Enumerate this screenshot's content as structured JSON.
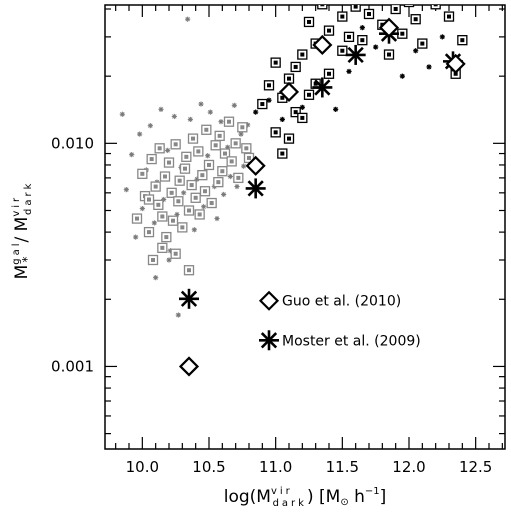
{
  "chart_data": {
    "type": "scatter",
    "xlabel": {
      "base": "log(M",
      "sup": "vir",
      "sub": "dark",
      "unit": ") [M",
      "tail": " h",
      "exp": "−1",
      "close": "]"
    },
    "ylabel": {
      "base": "M",
      "sup1": "gal",
      "sub1": "*",
      "slash": "/ M",
      "sup2": "vir",
      "sub2": "dark"
    },
    "xlim": [
      9.72,
      12.72
    ],
    "ylim_log10": [
      -3.37,
      -1.38
    ],
    "x_ticks": [
      {
        "value": 10.0,
        "label": "10.0"
      },
      {
        "value": 10.5,
        "label": "10.5"
      },
      {
        "value": 11.0,
        "label": "11.0"
      },
      {
        "value": 11.5,
        "label": "11.5"
      },
      {
        "value": 12.0,
        "label": "12.0"
      },
      {
        "value": 12.5,
        "label": "12.5"
      }
    ],
    "y_ticks": [
      {
        "value": 0.001,
        "label": "0.001"
      },
      {
        "value": 0.01,
        "label": "0.010"
      }
    ],
    "y_scale": "log",
    "legend": [
      {
        "name": "Guo et al. (2010)",
        "marker": "diamond",
        "x": 10.95,
        "y": 0.00197
      },
      {
        "name": "Moster et al. (2009)",
        "marker": "asterisk",
        "x": 10.95,
        "y": 0.00131
      }
    ],
    "series": [
      {
        "name": "Guo et al. (2010)",
        "marker": "diamond",
        "points": [
          [
            10.35,
            0.001
          ],
          [
            10.85,
            0.00793
          ],
          [
            11.1,
            0.017
          ],
          [
            11.35,
            0.0276
          ],
          [
            11.85,
            0.033
          ],
          [
            12.35,
            0.0227
          ]
        ]
      },
      {
        "name": "Moster et al. (2009)",
        "marker": "asterisk",
        "points": [
          [
            10.35,
            0.00201
          ],
          [
            10.85,
            0.00628
          ],
          [
            11.35,
            0.0178
          ],
          [
            11.6,
            0.0249
          ],
          [
            11.85,
            0.031
          ],
          [
            12.33,
            0.0233
          ]
        ]
      },
      {
        "name": "",
        "marker": "boxed-gray",
        "points": [
          [
            9.96,
            0.0046
          ],
          [
            10.0,
            0.0073
          ],
          [
            10.02,
            0.0058
          ],
          [
            10.05,
            0.004
          ],
          [
            10.07,
            0.0085
          ],
          [
            10.08,
            0.003
          ],
          [
            10.1,
            0.0064
          ],
          [
            10.12,
            0.0053
          ],
          [
            10.13,
            0.0095
          ],
          [
            10.15,
            0.0047
          ],
          [
            10.17,
            0.0071
          ],
          [
            10.18,
            0.0038
          ],
          [
            10.2,
            0.0082
          ],
          [
            10.22,
            0.006
          ],
          [
            10.23,
            0.0045
          ],
          [
            10.25,
            0.0099
          ],
          [
            10.27,
            0.0055
          ],
          [
            10.28,
            0.0068
          ],
          [
            10.3,
            0.0042
          ],
          [
            10.32,
            0.0077
          ],
          [
            10.33,
            0.0087
          ],
          [
            10.35,
            0.005
          ],
          [
            10.37,
            0.0065
          ],
          [
            10.38,
            0.0105
          ],
          [
            10.4,
            0.0057
          ],
          [
            10.42,
            0.0092
          ],
          [
            10.43,
            0.0048
          ],
          [
            10.45,
            0.0072
          ],
          [
            10.47,
            0.0061
          ],
          [
            10.48,
            0.0115
          ],
          [
            10.5,
            0.008
          ],
          [
            10.52,
            0.0054
          ],
          [
            10.55,
            0.0098
          ],
          [
            10.57,
            0.0067
          ],
          [
            10.58,
            0.0108
          ],
          [
            10.6,
            0.0075
          ],
          [
            10.62,
            0.009
          ],
          [
            10.65,
            0.0125
          ],
          [
            10.67,
            0.0083
          ],
          [
            10.7,
            0.01
          ],
          [
            10.72,
            0.007
          ],
          [
            10.75,
            0.0118
          ],
          [
            10.78,
            0.0095
          ],
          [
            10.8,
            0.0086
          ],
          [
            10.35,
            0.0027
          ],
          [
            10.15,
            0.0034
          ],
          [
            10.25,
            0.0032
          ],
          [
            10.05,
            0.0056
          ]
        ]
      },
      {
        "name": "",
        "marker": "boxed-black",
        "points": [
          [
            10.9,
            0.015
          ],
          [
            10.95,
            0.0182
          ],
          [
            11.0,
            0.0112
          ],
          [
            11.0,
            0.023
          ],
          [
            11.05,
            0.016
          ],
          [
            11.1,
            0.0195
          ],
          [
            11.15,
            0.022
          ],
          [
            11.15,
            0.0138
          ],
          [
            11.2,
            0.025
          ],
          [
            11.25,
            0.0165
          ],
          [
            11.25,
            0.035
          ],
          [
            11.3,
            0.028
          ],
          [
            11.3,
            0.0185
          ],
          [
            11.35,
            0.042
          ],
          [
            11.4,
            0.032
          ],
          [
            11.4,
            0.0205
          ],
          [
            11.45,
            0.045
          ],
          [
            11.5,
            0.037
          ],
          [
            11.5,
            0.026
          ],
          [
            11.55,
            0.03
          ],
          [
            11.6,
            0.041
          ],
          [
            11.65,
            0.029
          ],
          [
            11.7,
            0.038
          ],
          [
            11.75,
            0.046
          ],
          [
            11.8,
            0.034
          ],
          [
            11.85,
            0.025
          ],
          [
            11.9,
            0.04
          ],
          [
            11.95,
            0.031
          ],
          [
            12.0,
            0.043
          ],
          [
            12.05,
            0.036
          ],
          [
            12.1,
            0.028
          ],
          [
            12.2,
            0.042
          ],
          [
            12.3,
            0.037
          ],
          [
            12.4,
            0.029
          ],
          [
            12.35,
            0.0205
          ],
          [
            11.2,
            0.013
          ],
          [
            11.1,
            0.0105
          ],
          [
            11.05,
            0.009
          ]
        ]
      },
      {
        "name": "",
        "marker": "small-asterisk-gray",
        "points": [
          [
            9.85,
            0.0135
          ],
          [
            9.88,
            0.0062
          ],
          [
            9.92,
            0.0089
          ],
          [
            9.95,
            0.0038
          ],
          [
            9.98,
            0.011
          ],
          [
            10.0,
            0.0051
          ],
          [
            10.03,
            0.0076
          ],
          [
            10.06,
            0.012
          ],
          [
            10.09,
            0.0044
          ],
          [
            10.11,
            0.0067
          ],
          [
            10.14,
            0.0142
          ],
          [
            10.16,
            0.0056
          ],
          [
            10.19,
            0.0093
          ],
          [
            10.21,
            0.0033
          ],
          [
            10.24,
            0.0132
          ],
          [
            10.26,
            0.0048
          ],
          [
            10.29,
            0.0078
          ],
          [
            10.31,
            0.006
          ],
          [
            10.34,
            0.036
          ],
          [
            10.36,
            0.0128
          ],
          [
            10.39,
            0.0041
          ],
          [
            10.41,
            0.0069
          ],
          [
            10.44,
            0.015
          ],
          [
            10.46,
            0.0052
          ],
          [
            10.49,
            0.0088
          ],
          [
            10.51,
            0.0138
          ],
          [
            10.54,
            0.0064
          ],
          [
            10.56,
            0.0046
          ],
          [
            10.59,
            0.0125
          ],
          [
            10.61,
            0.0059
          ],
          [
            10.64,
            0.0096
          ],
          [
            10.66,
            0.0071
          ],
          [
            10.69,
            0.0148
          ],
          [
            10.71,
            0.0064
          ],
          [
            10.74,
            0.011
          ],
          [
            10.76,
            0.0079
          ],
          [
            10.79,
            0.0121
          ],
          [
            10.2,
            0.003
          ],
          [
            10.27,
            0.0017
          ],
          [
            10.1,
            0.0025
          ]
        ]
      },
      {
        "name": "",
        "marker": "small-asterisk-black",
        "points": [
          [
            10.85,
            0.0138
          ],
          [
            10.95,
            0.0156
          ],
          [
            11.05,
            0.0128
          ],
          [
            11.2,
            0.0145
          ],
          [
            11.45,
            0.0142
          ],
          [
            11.55,
            0.021
          ],
          [
            11.75,
            0.027
          ],
          [
            11.95,
            0.02
          ],
          [
            12.05,
            0.026
          ],
          [
            12.15,
            0.022
          ],
          [
            11.65,
            0.033
          ],
          [
            12.25,
            0.03
          ]
        ]
      }
    ]
  }
}
